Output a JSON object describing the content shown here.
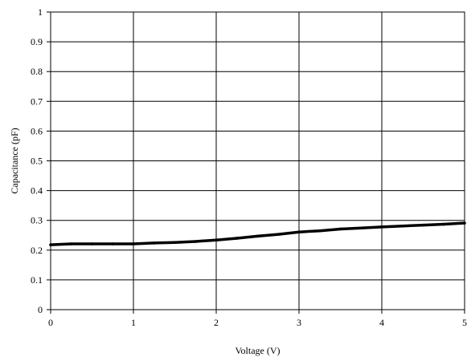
{
  "chart_data": {
    "type": "line",
    "title": "",
    "xlabel": "Voltage (V)",
    "ylabel": "Capacitance (pF)",
    "xlim": [
      0,
      5
    ],
    "ylim": [
      0,
      1
    ],
    "x_ticks": [
      "0",
      "1",
      "2",
      "3",
      "4",
      "5"
    ],
    "y_ticks": [
      "0",
      "0.1",
      "0.2",
      "0.3",
      "0.4",
      "0.5",
      "0.6",
      "0.7",
      "0.8",
      "0.9",
      "1"
    ],
    "grid": true,
    "legend": "none",
    "series": [
      {
        "color": "#000000",
        "x": [
          0,
          0.25,
          0.5,
          0.75,
          1.0,
          1.25,
          1.5,
          1.75,
          2.0,
          2.25,
          2.5,
          2.75,
          3.0,
          3.25,
          3.5,
          3.75,
          4.0,
          4.25,
          4.5,
          4.75,
          5.0
        ],
        "y": [
          0.218,
          0.221,
          0.221,
          0.221,
          0.221,
          0.224,
          0.226,
          0.229,
          0.234,
          0.24,
          0.247,
          0.253,
          0.261,
          0.265,
          0.271,
          0.274,
          0.278,
          0.281,
          0.284,
          0.287,
          0.291
        ]
      }
    ]
  }
}
